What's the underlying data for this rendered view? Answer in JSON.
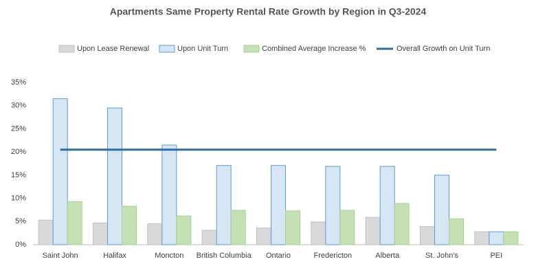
{
  "chart_data": {
    "type": "bar",
    "title": "Apartments Same Property Rental Rate Growth by Region in Q3-2024",
    "categories": [
      "Saint John",
      "Halifax",
      "Moncton",
      "British Columbia",
      "Ontario",
      "Fredericton",
      "Alberta",
      "St. John's",
      "PEI"
    ],
    "series": [
      {
        "name": "Upon Lease Renewal",
        "type": "bar",
        "color": "#d9d9d9",
        "stroke": "#bfbfbf",
        "values": [
          5.3,
          4.7,
          4.5,
          3.1,
          3.6,
          4.9,
          5.9,
          3.9,
          2.8
        ]
      },
      {
        "name": "Upon Unit Turn",
        "type": "bar",
        "color": "#d6e6f5",
        "stroke": "#5b9bd5",
        "values": [
          31.5,
          29.5,
          21.5,
          17.1,
          17.1,
          16.9,
          16.9,
          15.0,
          2.8
        ]
      },
      {
        "name": "Combined Average Increase %",
        "type": "bar",
        "color": "#c5e0b4",
        "stroke": "#a9d18e",
        "values": [
          9.3,
          8.3,
          6.2,
          7.4,
          7.3,
          7.4,
          8.9,
          5.6,
          2.8
        ]
      },
      {
        "name": "Overall Growth on Unit Turn",
        "type": "line",
        "color": "#2e6da4",
        "values": [
          20.5,
          20.5,
          20.5,
          20.5,
          20.5,
          20.5,
          20.5,
          20.5,
          20.5
        ]
      }
    ],
    "ylim": [
      0,
      35
    ],
    "yticks": [
      {
        "value": 0,
        "label": "0%"
      },
      {
        "value": 5,
        "label": "5%"
      },
      {
        "value": 10,
        "label": "10%"
      },
      {
        "value": 15,
        "label": "15%"
      },
      {
        "value": 20,
        "label": "20%"
      },
      {
        "value": 25,
        "label": "25%"
      },
      {
        "value": 30,
        "label": "30%"
      },
      {
        "value": 35,
        "label": "35%"
      }
    ],
    "grid": false,
    "legend": "top"
  }
}
